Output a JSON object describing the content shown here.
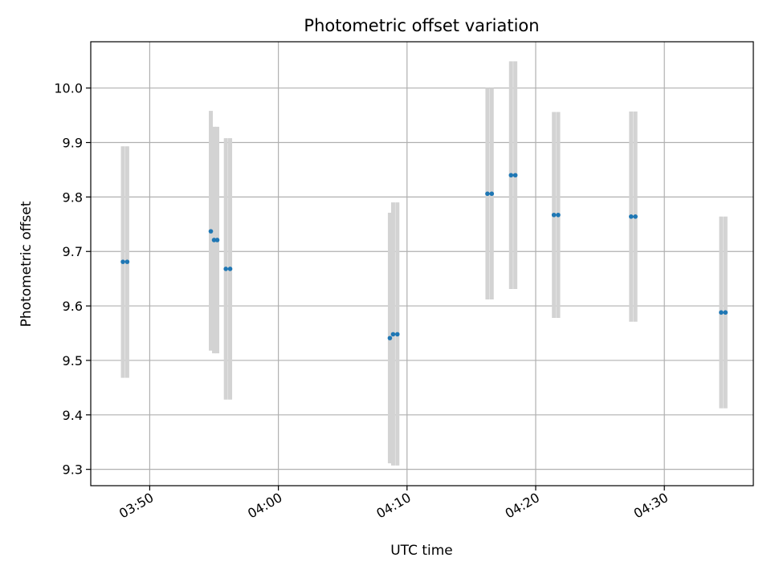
{
  "chart_data": {
    "type": "scatter",
    "title": "Photometric offset variation",
    "xlabel": "UTC time",
    "ylabel": "Photometric offset",
    "xlim": [
      "03:45:25",
      "04:36:55"
    ],
    "ylim": [
      9.27,
      10.085
    ],
    "grid": true,
    "x_ticks": [
      "03:50",
      "04:00",
      "04:10",
      "04:20",
      "04:30"
    ],
    "y_ticks": [
      "9.3",
      "9.4",
      "9.5",
      "9.6",
      "9.7",
      "9.8",
      "9.9",
      "10.0"
    ],
    "colors": {
      "points": "#1f77b4",
      "error_bars": "#d3d3d3",
      "grid": "#b0b0b0"
    },
    "series": [
      {
        "points": [
          {
            "x": "03:47:55",
            "y": 9.681,
            "err_low": 9.468,
            "err_high": 9.893
          },
          {
            "x": "03:48:15",
            "y": 9.681,
            "err_low": 9.468,
            "err_high": 9.893
          },
          {
            "x": "03:54:45",
            "y": 9.737,
            "err_low": 9.518,
            "err_high": 9.958
          },
          {
            "x": "03:55:00",
            "y": 9.721,
            "err_low": 9.513,
            "err_high": 9.929
          },
          {
            "x": "03:55:15",
            "y": 9.721,
            "err_low": 9.513,
            "err_high": 9.929
          },
          {
            "x": "03:55:55",
            "y": 9.668,
            "err_low": 9.428,
            "err_high": 9.908
          },
          {
            "x": "03:56:15",
            "y": 9.668,
            "err_low": 9.428,
            "err_high": 9.908
          },
          {
            "x": "04:08:40",
            "y": 9.541,
            "err_low": 9.311,
            "err_high": 9.771
          },
          {
            "x": "04:08:55",
            "y": 9.548,
            "err_low": 9.307,
            "err_high": 9.79
          },
          {
            "x": "04:09:15",
            "y": 9.548,
            "err_low": 9.307,
            "err_high": 9.79
          },
          {
            "x": "04:16:15",
            "y": 9.806,
            "err_low": 9.612,
            "err_high": 10.0
          },
          {
            "x": "04:16:35",
            "y": 9.806,
            "err_low": 9.612,
            "err_high": 10.0
          },
          {
            "x": "04:18:05",
            "y": 9.84,
            "err_low": 9.631,
            "err_high": 10.049
          },
          {
            "x": "04:18:25",
            "y": 9.84,
            "err_low": 9.631,
            "err_high": 10.049
          },
          {
            "x": "04:21:25",
            "y": 9.767,
            "err_low": 9.578,
            "err_high": 9.956
          },
          {
            "x": "04:21:45",
            "y": 9.767,
            "err_low": 9.578,
            "err_high": 9.956
          },
          {
            "x": "04:27:25",
            "y": 9.764,
            "err_low": 9.571,
            "err_high": 9.957
          },
          {
            "x": "04:27:45",
            "y": 9.764,
            "err_low": 9.571,
            "err_high": 9.957
          },
          {
            "x": "04:34:25",
            "y": 9.588,
            "err_low": 9.412,
            "err_high": 9.764
          },
          {
            "x": "04:34:45",
            "y": 9.588,
            "err_low": 9.412,
            "err_high": 9.764
          }
        ]
      }
    ]
  }
}
